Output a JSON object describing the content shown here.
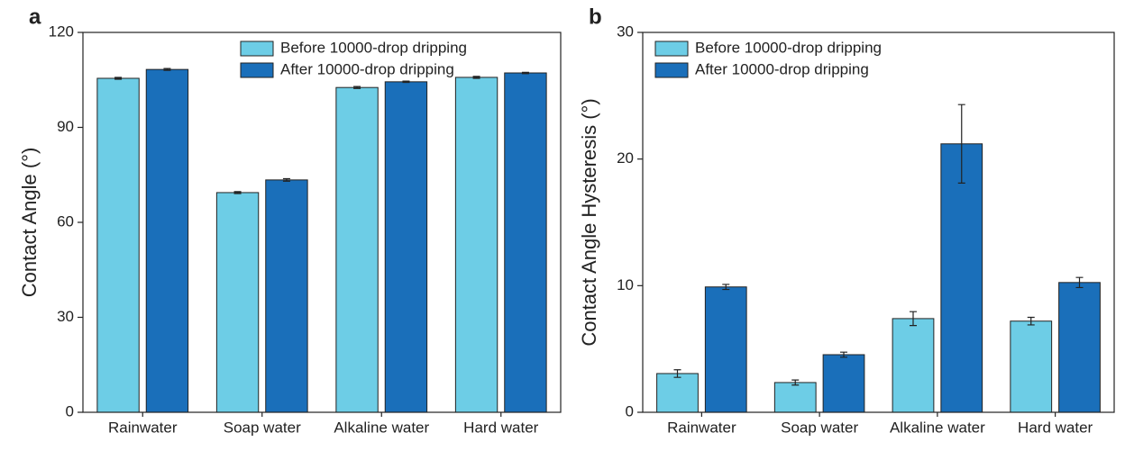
{
  "chart_data": [
    {
      "type": "bar",
      "panel_label": "a",
      "y_label": "Contact Angle (°)",
      "categories": [
        "Rainwater",
        "Soap water",
        "Alkaline water",
        "Hard water"
      ],
      "series": [
        {
          "name": "Before 10000-drop dripping",
          "color": "#6dcde6",
          "values": [
            105.5,
            69.4,
            102.6,
            105.8
          ],
          "errors": [
            0.3,
            0.3,
            0.3,
            0.3
          ]
        },
        {
          "name": "After 10000-drop dripping",
          "color": "#1a6fba",
          "values": [
            108.3,
            73.4,
            104.4,
            107.2
          ],
          "errors": [
            0.3,
            0.4,
            0.2,
            0.2
          ]
        }
      ],
      "ylim": [
        0,
        120
      ],
      "yticks": [
        0,
        30,
        60,
        90,
        120
      ],
      "legend": "upper center"
    },
    {
      "type": "bar",
      "panel_label": "b",
      "y_label": "Contact Angle Hysteresis (°)",
      "categories": [
        "Rainwater",
        "Soap water",
        "Alkaline water",
        "Hard water"
      ],
      "series": [
        {
          "name": "Before 10000-drop dripping",
          "color": "#6dcde6",
          "values": [
            3.06,
            2.35,
            7.4,
            7.2
          ],
          "errors": [
            0.3,
            0.2,
            0.55,
            0.3
          ]
        },
        {
          "name": "After 10000-drop dripping",
          "color": "#1a6fba",
          "values": [
            9.9,
            4.55,
            21.2,
            10.25
          ],
          "errors": [
            0.2,
            0.2,
            3.1,
            0.4
          ]
        }
      ],
      "ylim": [
        0,
        30
      ],
      "yticks": [
        0,
        10,
        20,
        30
      ],
      "legend": "upper left"
    }
  ]
}
